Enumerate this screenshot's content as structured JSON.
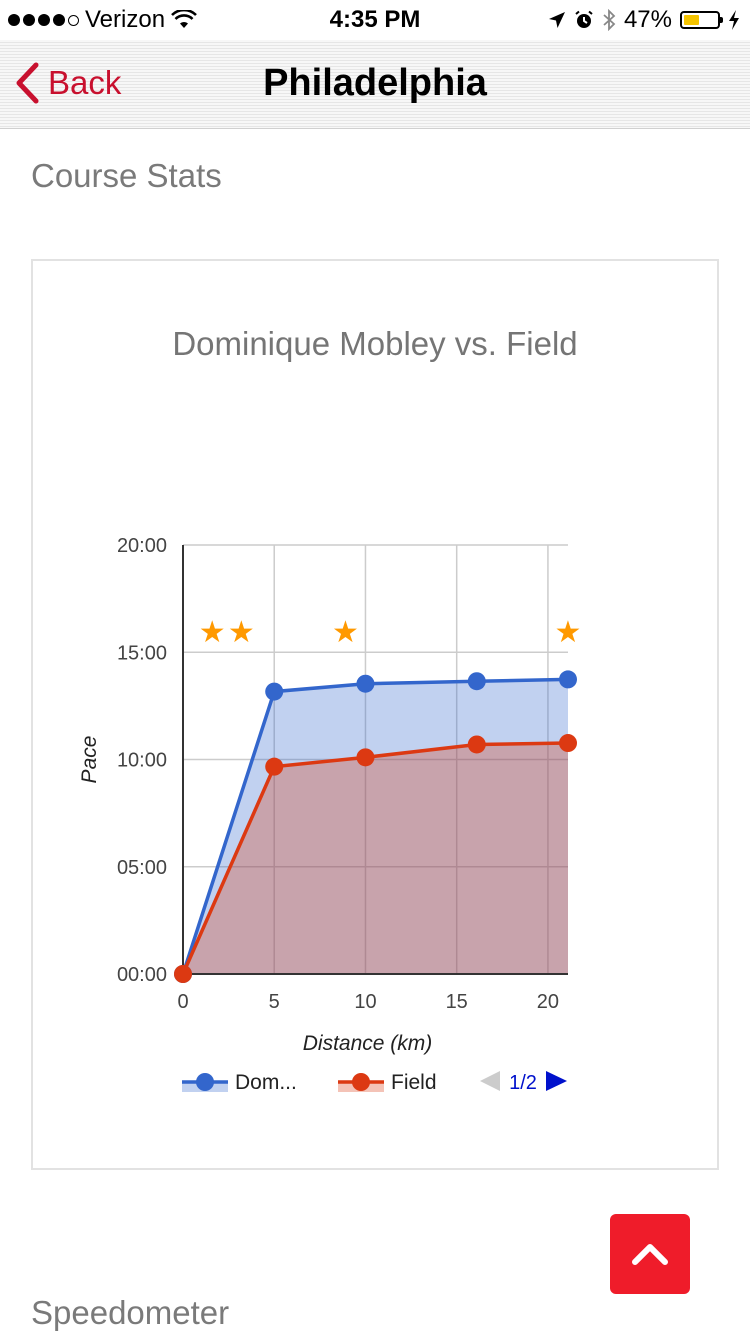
{
  "status_bar": {
    "carrier": "Verizon",
    "time": "4:35 PM",
    "battery_text": "47%",
    "battery_level": 0.47,
    "battery_color": "#f5c400"
  },
  "nav": {
    "back_label": "Back",
    "title": "Philadelphia"
  },
  "sections": {
    "course_stats": "Course Stats",
    "speedometer": "Speedometer"
  },
  "chart_data": {
    "type": "area",
    "title": "Dominique Mobley vs. Field",
    "xlabel": "Distance (km)",
    "ylabel": "Pace",
    "xlim": [
      0,
      21.1
    ],
    "ylim": [
      0,
      1200
    ],
    "x_ticks": [
      0,
      5,
      10,
      15,
      20
    ],
    "x_tick_labels": [
      "0",
      "5",
      "10",
      "15",
      "20"
    ],
    "y_ticks": [
      0,
      300,
      600,
      900,
      1200
    ],
    "y_tick_labels": [
      "00:00",
      "05:00",
      "10:00",
      "15:00",
      "20:00"
    ],
    "grid": true,
    "legend_position": "bottom",
    "legend_page": "1/2",
    "series": [
      {
        "name": "Dom...",
        "color": "#3366cc",
        "x": [
          0,
          5,
          10,
          16.1,
          21.1
        ],
        "y": [
          0,
          790,
          812,
          819,
          824
        ]
      },
      {
        "name": "Field",
        "color": "#dc3912",
        "x": [
          0,
          5,
          10,
          16.1,
          21.1
        ],
        "y": [
          0,
          580,
          606,
          642,
          646
        ]
      }
    ],
    "star_markers": {
      "color": "#ff9900",
      "x": [
        1.6,
        3.2,
        8.9,
        21.1
      ],
      "y": 960
    }
  },
  "colors": {
    "accent_red": "#c8102e",
    "fab_red": "#ef1c2a"
  },
  "icons": {
    "back": "chevron-left-icon",
    "scroll_top": "chevron-up-icon"
  }
}
